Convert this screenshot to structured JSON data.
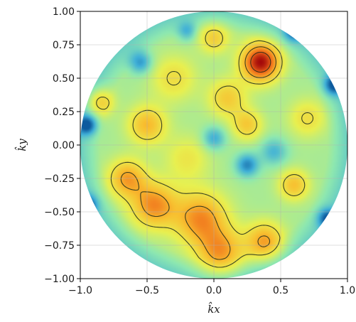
{
  "chart_data": {
    "type": "heatmap",
    "title": "",
    "xlabel": "k̂x",
    "ylabel": "k̂y",
    "xlim": [
      -1.0,
      1.0
    ],
    "ylim": [
      -1.0,
      1.0
    ],
    "grid": true,
    "domain_shape": "unit-disk",
    "x_ticks": [
      "−1.0",
      "−0.5",
      "0.0",
      "0.5",
      "1.0"
    ],
    "y_ticks": [
      "1.00",
      "0.75",
      "0.50",
      "0.25",
      "0.00",
      "−0.25",
      "−0.50",
      "−0.75",
      "−1.00"
    ],
    "x_tick_values": [
      -1.0,
      -0.5,
      0.0,
      0.5,
      1.0
    ],
    "y_tick_values": [
      1.0,
      0.75,
      0.5,
      0.25,
      0.0,
      -0.25,
      -0.5,
      -0.75,
      -1.0
    ],
    "colormap": [
      "#0d5a9e",
      "#40b0d8",
      "#8ee8b0",
      "#e8f050",
      "#f8c030",
      "#f06a1a",
      "#a40a0a"
    ],
    "contour_levels": [
      0.55,
      0.7,
      0.85
    ],
    "peaks": [
      {
        "x": 0.35,
        "y": 0.62,
        "amplitude": 1.0,
        "sigma": 0.1
      },
      {
        "x": -0.45,
        "y": -0.45,
        "amplitude": 0.62,
        "sigma": 0.12
      },
      {
        "x": -0.65,
        "y": -0.25,
        "amplitude": 0.55,
        "sigma": 0.1
      },
      {
        "x": -0.1,
        "y": -0.55,
        "amplitude": 0.62,
        "sigma": 0.14
      },
      {
        "x": 0.05,
        "y": -0.8,
        "amplitude": 0.55,
        "sigma": 0.12
      },
      {
        "x": 0.38,
        "y": -0.72,
        "amplitude": 0.55,
        "sigma": 0.1
      },
      {
        "x": -0.5,
        "y": 0.15,
        "amplitude": 0.48,
        "sigma": 0.1
      },
      {
        "x": -0.85,
        "y": 0.32,
        "amplitude": 0.42,
        "sigma": 0.07
      },
      {
        "x": 0.6,
        "y": -0.3,
        "amplitude": 0.45,
        "sigma": 0.08
      },
      {
        "x": 0.1,
        "y": 0.35,
        "amplitude": 0.4,
        "sigma": 0.1
      },
      {
        "x": 0.25,
        "y": 0.15,
        "amplitude": 0.4,
        "sigma": 0.08
      },
      {
        "x": 0.0,
        "y": 0.8,
        "amplitude": 0.38,
        "sigma": 0.08
      },
      {
        "x": -0.3,
        "y": 0.5,
        "amplitude": 0.3,
        "sigma": 0.12
      },
      {
        "x": 0.7,
        "y": 0.2,
        "amplitude": 0.3,
        "sigma": 0.1
      },
      {
        "x": -0.2,
        "y": -0.1,
        "amplitude": 0.25,
        "sigma": 0.12
      }
    ],
    "troughs": [
      {
        "x": -0.95,
        "y": 0.15,
        "depth": 0.55,
        "sigma": 0.05
      },
      {
        "x": -0.95,
        "y": -0.45,
        "depth": 0.5,
        "sigma": 0.05
      },
      {
        "x": 0.9,
        "y": 0.45,
        "depth": 0.5,
        "sigma": 0.05
      },
      {
        "x": 0.85,
        "y": -0.55,
        "depth": 0.45,
        "sigma": 0.05
      },
      {
        "x": 0.25,
        "y": -0.15,
        "depth": 0.45,
        "sigma": 0.06
      },
      {
        "x": -0.55,
        "y": 0.62,
        "depth": 0.4,
        "sigma": 0.06
      },
      {
        "x": 0.6,
        "y": 0.85,
        "depth": 0.4,
        "sigma": 0.05
      },
      {
        "x": 0.0,
        "y": 0.05,
        "depth": 0.35,
        "sigma": 0.06
      },
      {
        "x": 0.45,
        "y": -0.05,
        "depth": 0.3,
        "sigma": 0.07
      },
      {
        "x": -0.2,
        "y": 0.85,
        "depth": 0.3,
        "sigma": 0.05
      }
    ]
  }
}
